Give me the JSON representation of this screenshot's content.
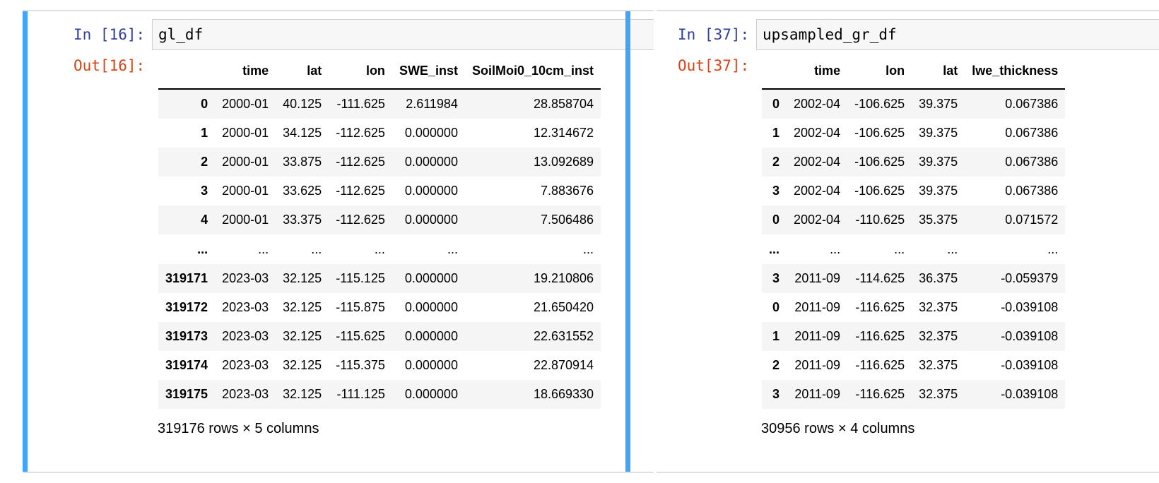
{
  "left_cell": {
    "in_prompt": "In [16]:",
    "code": "gl_df",
    "out_prompt": "Out[16]:",
    "columns": [
      "",
      "time",
      "lat",
      "lon",
      "SWE_inst",
      "SoilMoi0_10cm_inst"
    ],
    "rows": [
      [
        "0",
        "2000-01",
        "40.125",
        "-111.625",
        "2.611984",
        "28.858704"
      ],
      [
        "1",
        "2000-01",
        "34.125",
        "-112.625",
        "0.000000",
        "12.314672"
      ],
      [
        "2",
        "2000-01",
        "33.875",
        "-112.625",
        "0.000000",
        "13.092689"
      ],
      [
        "3",
        "2000-01",
        "33.625",
        "-112.625",
        "0.000000",
        "7.883676"
      ],
      [
        "4",
        "2000-01",
        "33.375",
        "-112.625",
        "0.000000",
        "7.506486"
      ],
      [
        "...",
        "...",
        "...",
        "...",
        "...",
        "..."
      ],
      [
        "319171",
        "2023-03",
        "32.125",
        "-115.125",
        "0.000000",
        "19.210806"
      ],
      [
        "319172",
        "2023-03",
        "32.125",
        "-115.875",
        "0.000000",
        "21.650420"
      ],
      [
        "319173",
        "2023-03",
        "32.125",
        "-115.625",
        "0.000000",
        "22.631552"
      ],
      [
        "319174",
        "2023-03",
        "32.125",
        "-115.375",
        "0.000000",
        "22.870914"
      ],
      [
        "319175",
        "2023-03",
        "32.125",
        "-111.125",
        "0.000000",
        "18.669330"
      ]
    ],
    "shape": "319176 rows × 5 columns"
  },
  "right_cell": {
    "in_prompt": "In [37]:",
    "code": "upsampled_gr_df",
    "out_prompt": "Out[37]:",
    "columns": [
      "",
      "time",
      "lon",
      "lat",
      "lwe_thickness"
    ],
    "rows": [
      [
        "0",
        "2002-04",
        "-106.625",
        "39.375",
        "0.067386"
      ],
      [
        "1",
        "2002-04",
        "-106.625",
        "39.375",
        "0.067386"
      ],
      [
        "2",
        "2002-04",
        "-106.625",
        "39.375",
        "0.067386"
      ],
      [
        "3",
        "2002-04",
        "-106.625",
        "39.375",
        "0.067386"
      ],
      [
        "0",
        "2002-04",
        "-110.625",
        "35.375",
        "0.071572"
      ],
      [
        "...",
        "...",
        "...",
        "...",
        "..."
      ],
      [
        "3",
        "2011-09",
        "-114.625",
        "36.375",
        "-0.059379"
      ],
      [
        "0",
        "2011-09",
        "-116.625",
        "32.375",
        "-0.039108"
      ],
      [
        "1",
        "2011-09",
        "-116.625",
        "32.375",
        "-0.039108"
      ],
      [
        "2",
        "2011-09",
        "-116.625",
        "32.375",
        "-0.039108"
      ],
      [
        "3",
        "2011-09",
        "-116.625",
        "32.375",
        "-0.039108"
      ]
    ],
    "shape": "30956 rows × 4 columns"
  },
  "colors": {
    "selected_bar": "#42a5f5",
    "in_prompt": "#303f9f",
    "out_prompt": "#d84315"
  }
}
